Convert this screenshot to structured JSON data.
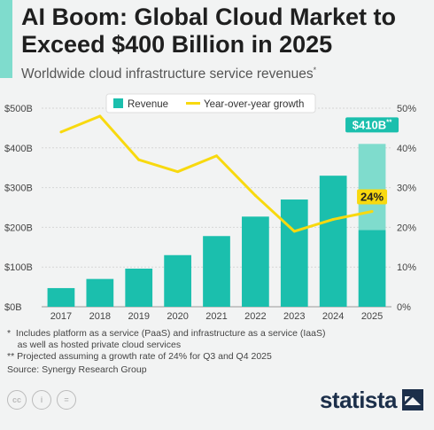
{
  "header": {
    "title": "AI Boom: Global Cloud Market to Exceed $400 Billion in 2025",
    "subtitle": "Worldwide cloud infrastructure service revenues",
    "subtitle_mark": "*"
  },
  "chart_data": {
    "type": "bar",
    "categories": [
      "2017",
      "2018",
      "2019",
      "2020",
      "2021",
      "2022",
      "2023",
      "2024",
      "2025"
    ],
    "series": [
      {
        "name": "Revenue",
        "type": "bar",
        "axis": "left",
        "color": "#1bbfad",
        "values": [
          47,
          70,
          96,
          130,
          178,
          227,
          270,
          330,
          410
        ],
        "projected_base": {
          "category": "2025",
          "value": 193,
          "projected_color": "#7fdccd"
        }
      },
      {
        "name": "Year-over-year growth",
        "type": "line",
        "axis": "right",
        "color": "#f8d90f",
        "values": [
          44,
          48,
          37,
          34,
          38,
          28,
          19,
          22,
          24
        ]
      }
    ],
    "left_axis": {
      "ticks": [
        "$0B",
        "$100B",
        "$200B",
        "$300B",
        "$400B",
        "$500B"
      ],
      "range": [
        0,
        500
      ]
    },
    "right_axis": {
      "ticks": [
        "0%",
        "10%",
        "20%",
        "30%",
        "40%",
        "50%"
      ],
      "range": [
        0,
        50
      ]
    },
    "annotations": [
      {
        "text": "$410B",
        "mark": "**",
        "category": "2025",
        "series": "Revenue"
      },
      {
        "text": "24%",
        "category": "2025",
        "series": "Year-over-year growth"
      }
    ],
    "grid": true,
    "legend_position": "top"
  },
  "footnotes": [
    "*  Includes platform as a service (PaaS) and infrastructure as a service (IaaS)",
    "    as well as hosted private cloud services",
    "** Projected assuming a growth rate of 24% for Q3 and Q4 2025"
  ],
  "source": "Source: Synergy Research Group",
  "branding": {
    "name": "statista",
    "color": "#1c2f4a"
  },
  "license_icons": [
    "cc-icon",
    "attribution-icon",
    "no-derivatives-icon"
  ]
}
